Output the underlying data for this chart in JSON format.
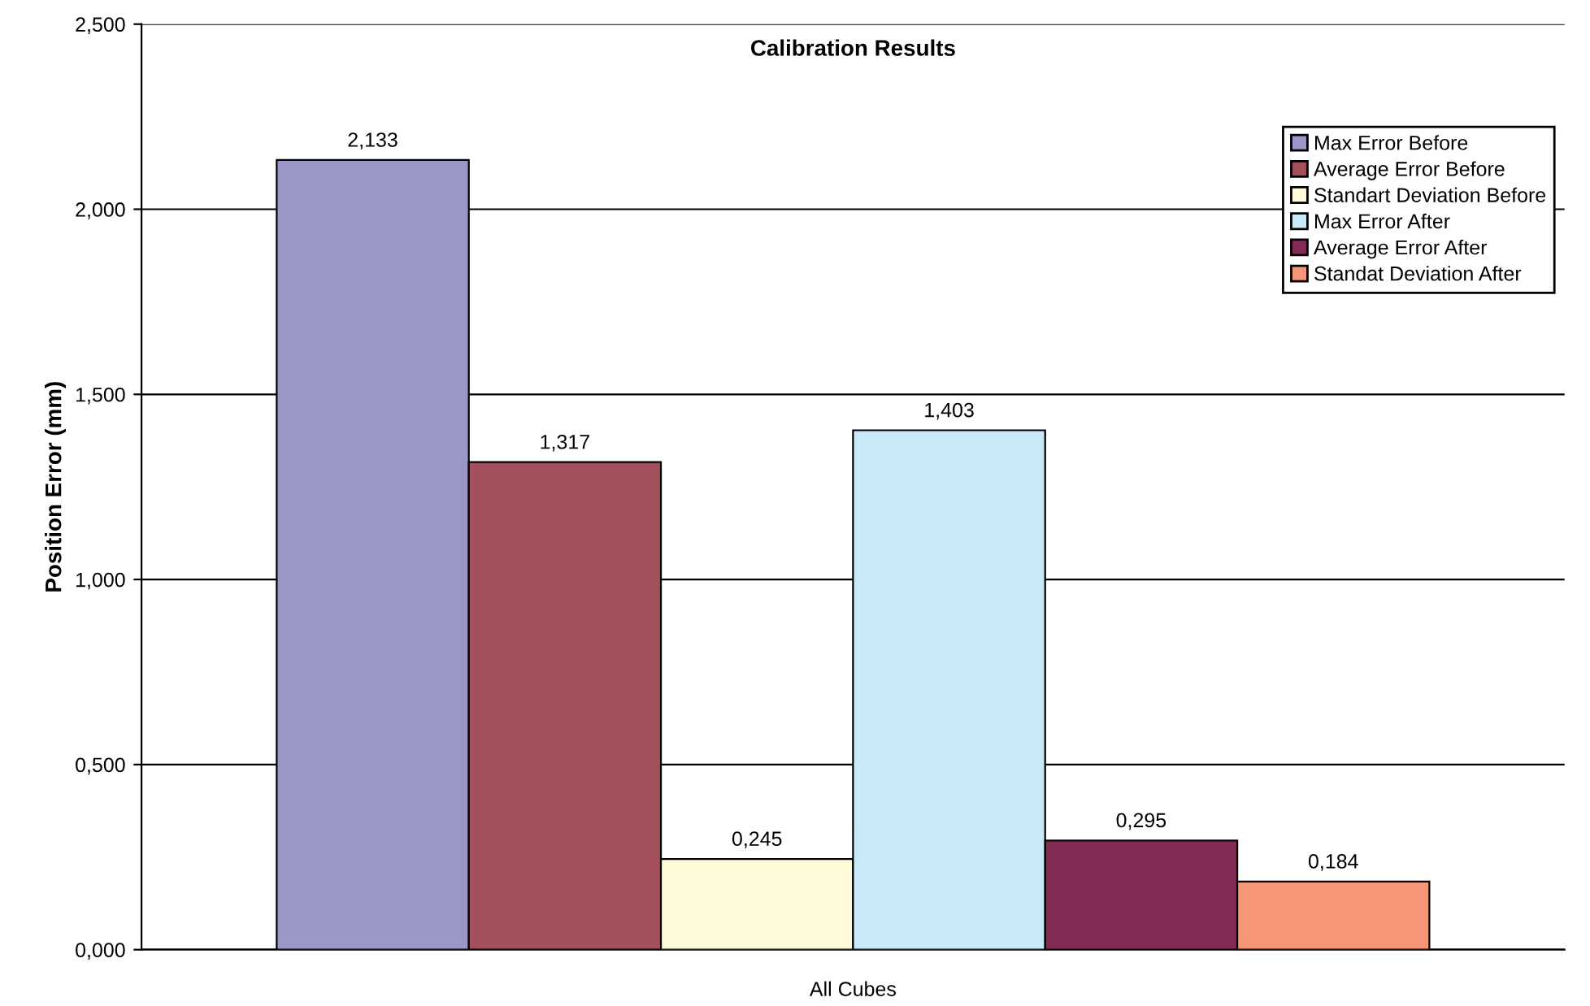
{
  "chart_data": {
    "type": "bar",
    "title": "Calibration Results",
    "ylabel": "Position Error (mm)",
    "categories": [
      "All Cubes"
    ],
    "series": [
      {
        "name": "Max Error Before",
        "color": "#9b96c8",
        "values": [
          2.133
        ],
        "value_labels": [
          "2,133"
        ]
      },
      {
        "name": "Average Error Before",
        "color": "#a3505c",
        "values": [
          1.317
        ],
        "value_labels": [
          "1,317"
        ]
      },
      {
        "name": "Standart Deviation Before",
        "color": "#fffad8",
        "values": [
          0.245
        ],
        "value_labels": [
          "0,245"
        ]
      },
      {
        "name": "Max Error After",
        "color": "#c8eaf8",
        "values": [
          1.403
        ],
        "value_labels": [
          "1,403"
        ]
      },
      {
        "name": "Average Error After",
        "color": "#822c55",
        "values": [
          0.295
        ],
        "value_labels": [
          "0,295"
        ]
      },
      {
        "name": "Standat Deviation After",
        "color": "#f59678",
        "values": [
          0.184
        ],
        "value_labels": [
          "0,184"
        ]
      }
    ],
    "ylim": [
      0,
      2.5
    ],
    "yticks": [
      {
        "value": 0,
        "label": "0,000"
      },
      {
        "value": 0.5,
        "label": "0,500"
      },
      {
        "value": 1,
        "label": "1,000"
      },
      {
        "value": 1.5,
        "label": "1,500"
      },
      {
        "value": 2,
        "label": "2,000"
      },
      {
        "value": 2.5,
        "label": "2,500"
      }
    ],
    "grid": "y",
    "legend": "top right"
  }
}
